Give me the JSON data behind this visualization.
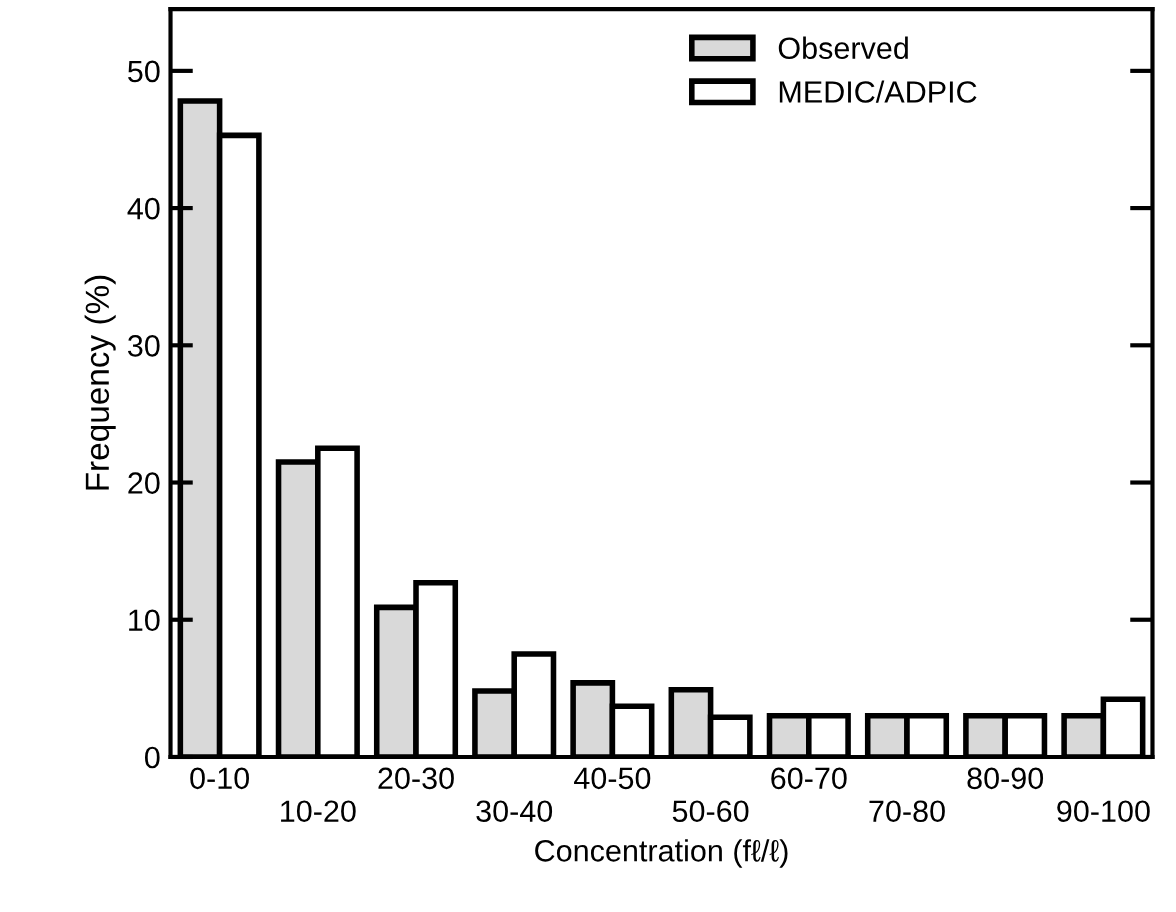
{
  "chart_data": {
    "type": "bar",
    "xlabel": "Concentration (fℓ/ℓ)",
    "ylabel": "Frequency (%)",
    "categories": [
      "0-10",
      "10-20",
      "20-30",
      "30-40",
      "40-50",
      "50-60",
      "60-70",
      "70-80",
      "80-90",
      "90-100"
    ],
    "series": [
      {
        "name": "Observed",
        "color": "#d9d9d9",
        "values": [
          47.8,
          21.5,
          10.9,
          4.8,
          5.4,
          4.9,
          3.0,
          3.0,
          3.0,
          3.0
        ]
      },
      {
        "name": "MEDIC/ADPIC",
        "color": "#ffffff",
        "values": [
          45.3,
          22.5,
          12.7,
          7.5,
          3.7,
          2.9,
          3.0,
          3.0,
          3.0,
          4.2
        ]
      }
    ],
    "ylim": [
      0,
      54.5
    ],
    "yticks": [
      0,
      10,
      20,
      30,
      40,
      50
    ],
    "grid": false,
    "legend": "top right"
  }
}
